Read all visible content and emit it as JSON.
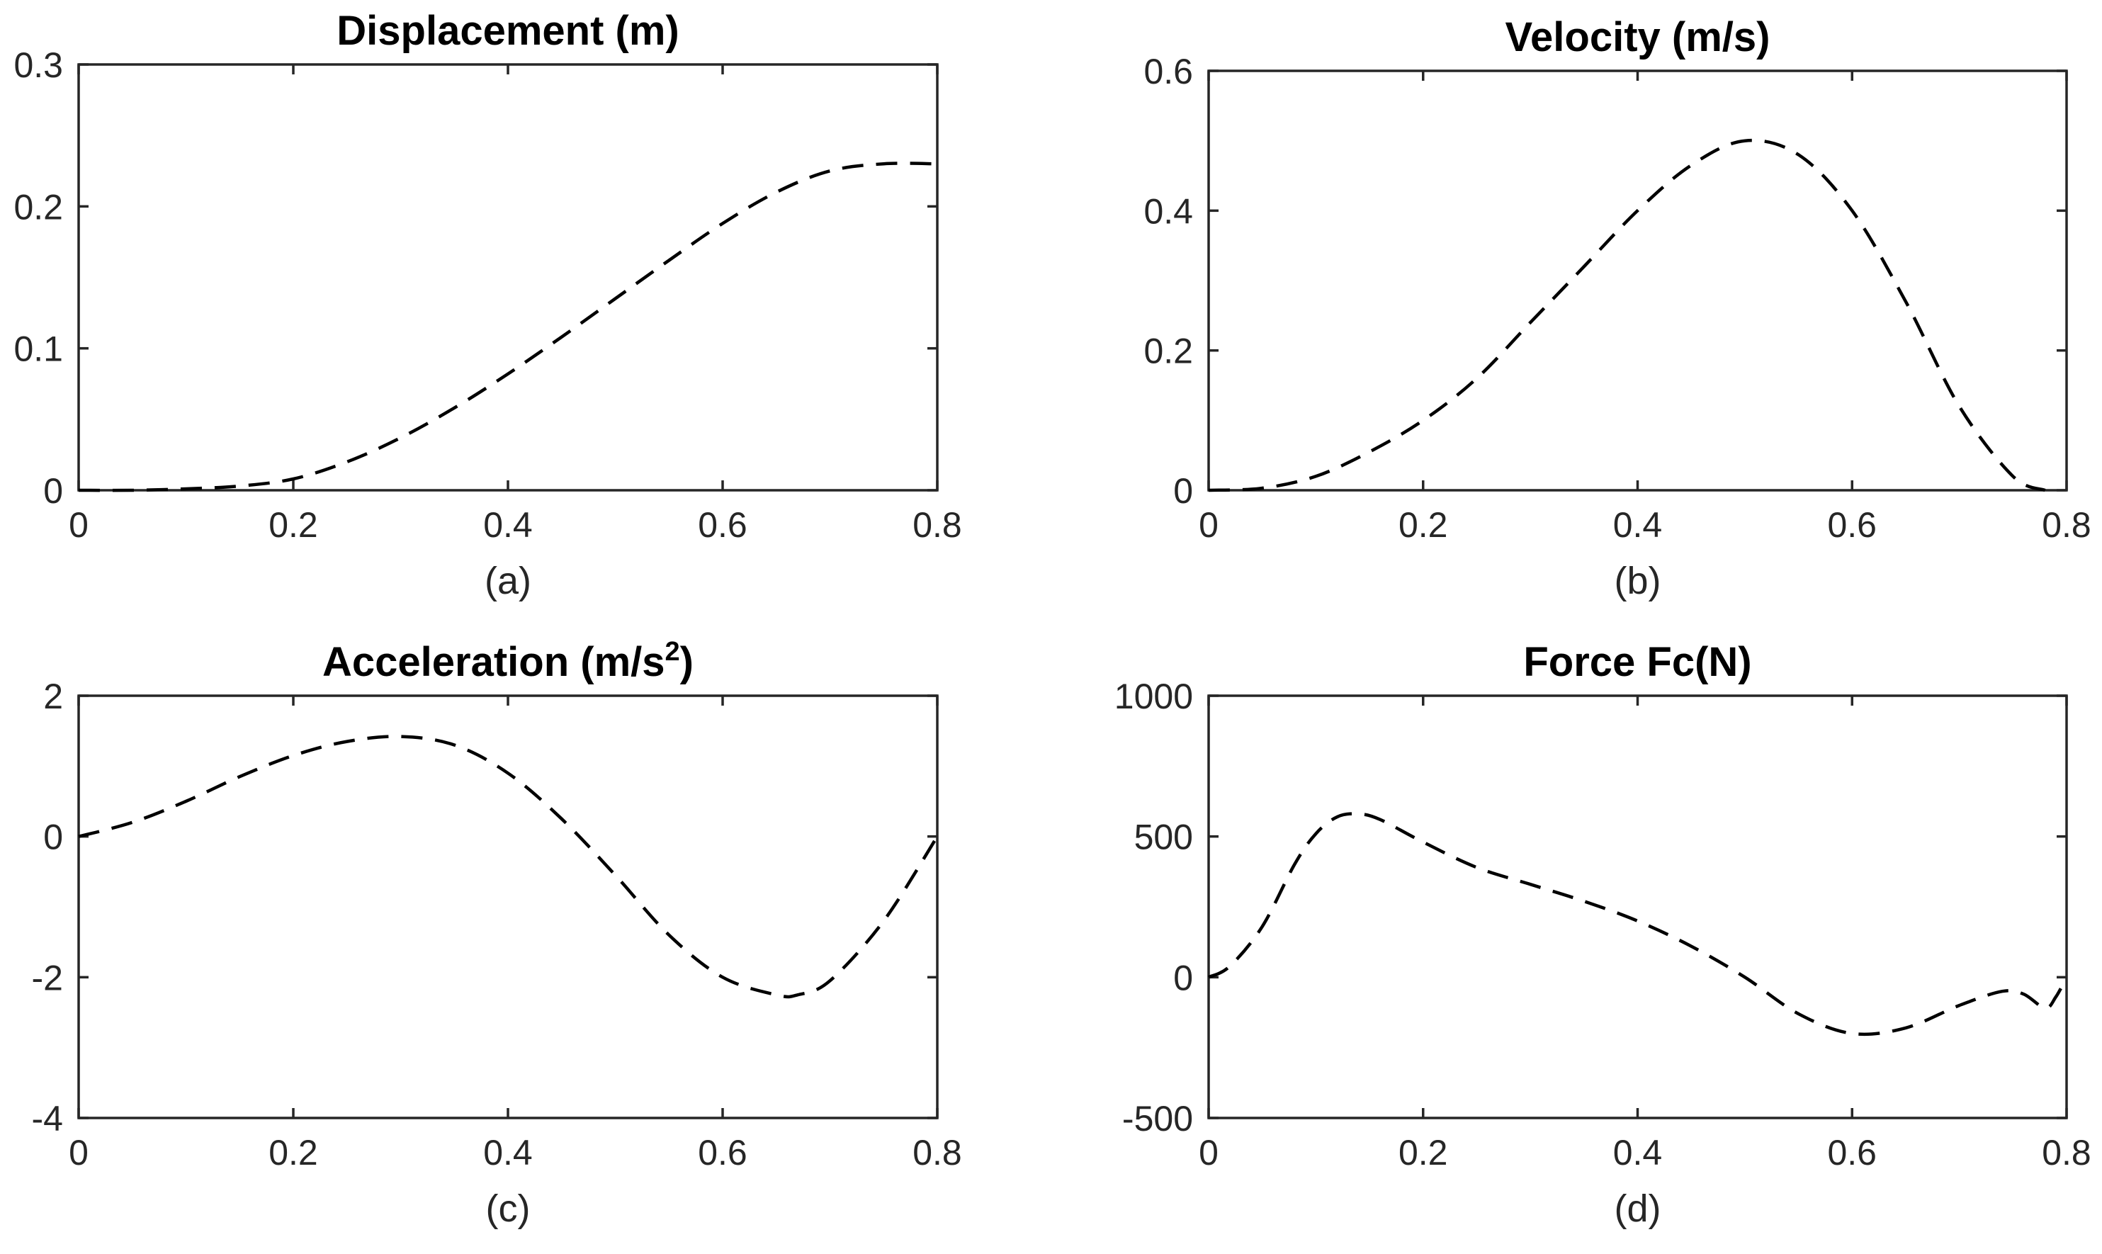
{
  "chart_data": [
    {
      "type": "line",
      "title": "Displacement (m)",
      "caption": "(a)",
      "xlim": [
        0,
        0.8
      ],
      "ylim": [
        0,
        0.3
      ],
      "xticks": [
        0,
        0.2,
        0.4,
        0.6,
        0.8
      ],
      "xtick_labels": [
        "0",
        "0.2",
        "0.4",
        "0.6",
        "0.8"
      ],
      "yticks": [
        0,
        0.1,
        0.2,
        0.3
      ],
      "ytick_labels": [
        "0",
        "0.1",
        "0.2",
        "0.3"
      ],
      "series": [
        {
          "name": "displacement",
          "x": [
            0,
            0.05,
            0.1,
            0.15,
            0.2,
            0.25,
            0.3,
            0.35,
            0.4,
            0.45,
            0.5,
            0.55,
            0.6,
            0.65,
            0.7,
            0.75,
            0.8
          ],
          "values": [
            0,
            0,
            0.001,
            0.003,
            0.008,
            0.02,
            0.037,
            0.058,
            0.082,
            0.108,
            0.135,
            0.162,
            0.188,
            0.21,
            0.225,
            0.23,
            0.23
          ]
        }
      ]
    },
    {
      "type": "line",
      "title": "Velocity (m/s)",
      "caption": "(b)",
      "xlim": [
        0,
        0.8
      ],
      "ylim": [
        0,
        0.6
      ],
      "xticks": [
        0,
        0.2,
        0.4,
        0.6,
        0.8
      ],
      "xtick_labels": [
        "0",
        "0.2",
        "0.4",
        "0.6",
        "0.8"
      ],
      "yticks": [
        0,
        0.2,
        0.4,
        0.6
      ],
      "ytick_labels": [
        "0",
        "0.2",
        "0.4",
        "0.6"
      ],
      "series": [
        {
          "name": "velocity",
          "x": [
            0,
            0.05,
            0.1,
            0.15,
            0.2,
            0.25,
            0.3,
            0.35,
            0.4,
            0.45,
            0.5,
            0.55,
            0.6,
            0.65,
            0.7,
            0.75,
            0.78
          ],
          "values": [
            0,
            0.003,
            0.02,
            0.055,
            0.1,
            0.16,
            0.24,
            0.32,
            0.4,
            0.465,
            0.5,
            0.48,
            0.4,
            0.27,
            0.12,
            0.02,
            0
          ]
        }
      ]
    },
    {
      "type": "line",
      "title": "Acceleration (m/s",
      "title_superscript": "2",
      "title_suffix": ")",
      "caption": "(c)",
      "xlim": [
        0,
        0.8
      ],
      "ylim": [
        -4,
        2
      ],
      "xticks": [
        0,
        0.2,
        0.4,
        0.6,
        0.8
      ],
      "xtick_labels": [
        "0",
        "0.2",
        "0.4",
        "0.6",
        "0.8"
      ],
      "yticks": [
        -4,
        -2,
        0,
        2
      ],
      "ytick_labels": [
        "-4",
        "-2",
        "0",
        "2"
      ],
      "series": [
        {
          "name": "acceleration",
          "x": [
            0,
            0.05,
            0.1,
            0.15,
            0.2,
            0.25,
            0.3,
            0.35,
            0.4,
            0.45,
            0.5,
            0.55,
            0.6,
            0.65,
            0.67,
            0.7,
            0.75,
            0.8
          ],
          "values": [
            0,
            0.2,
            0.5,
            0.85,
            1.15,
            1.35,
            1.42,
            1.3,
            0.9,
            0.25,
            -0.55,
            -1.4,
            -2.0,
            -2.25,
            -2.25,
            -2.05,
            -1.2,
            0
          ]
        }
      ]
    },
    {
      "type": "line",
      "title": "Force Fc(N)",
      "caption": "(d)",
      "xlim": [
        0,
        0.8
      ],
      "ylim": [
        -500,
        1000
      ],
      "xticks": [
        0,
        0.2,
        0.4,
        0.6,
        0.8
      ],
      "xtick_labels": [
        "0",
        "0.2",
        "0.4",
        "0.6",
        "0.8"
      ],
      "yticks": [
        -500,
        0,
        500,
        1000
      ],
      "ytick_labels": [
        "-500",
        "0",
        "500",
        "1000"
      ],
      "series": [
        {
          "name": "force",
          "x": [
            0,
            0.02,
            0.05,
            0.08,
            0.1,
            0.12,
            0.14,
            0.16,
            0.2,
            0.25,
            0.3,
            0.35,
            0.4,
            0.45,
            0.5,
            0.55,
            0.6,
            0.65,
            0.7,
            0.74,
            0.76,
            0.78,
            0.79,
            0.8
          ],
          "values": [
            0,
            40,
            180,
            400,
            510,
            570,
            580,
            560,
            480,
            390,
            330,
            270,
            200,
            110,
            0,
            -130,
            -200,
            -180,
            -100,
            -50,
            -60,
            -110,
            -70,
            0
          ]
        }
      ]
    }
  ]
}
